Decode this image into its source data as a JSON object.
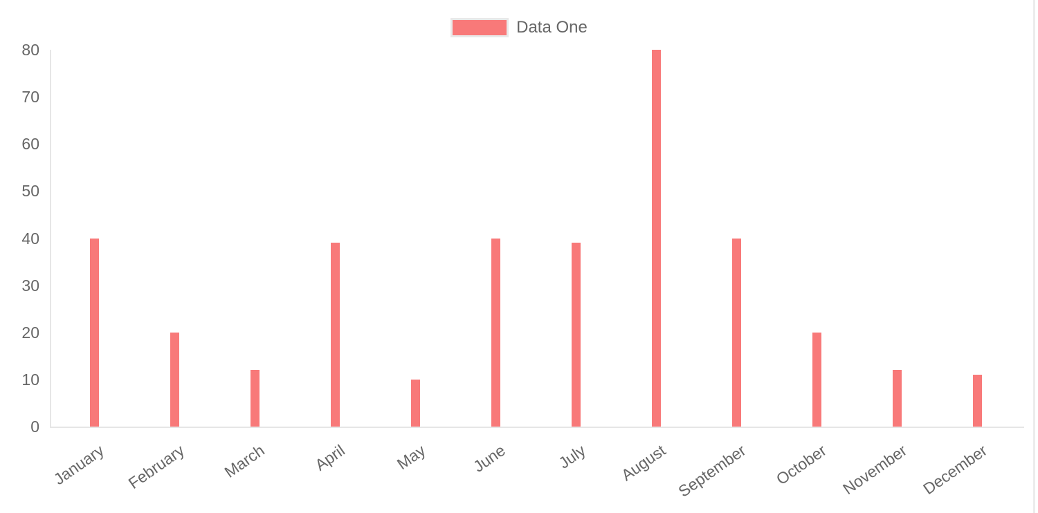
{
  "chart_data": {
    "type": "bar",
    "title": "",
    "xlabel": "",
    "ylabel": "",
    "categories": [
      "January",
      "February",
      "March",
      "April",
      "May",
      "June",
      "July",
      "August",
      "September",
      "October",
      "November",
      "December"
    ],
    "series": [
      {
        "name": "Data One",
        "color": "#f87979",
        "values": [
          40,
          20,
          12,
          39,
          10,
          40,
          39,
          80,
          40,
          20,
          12,
          11
        ]
      }
    ],
    "ylim": [
      0,
      80
    ],
    "yticks": [
      0,
      10,
      20,
      30,
      40,
      50,
      60,
      70,
      80
    ],
    "grid": false,
    "legend_position": "top",
    "x_label_rotation_deg": -35,
    "colors": {
      "bar": "#f87979",
      "axis_line": "#e6e6e6",
      "tick_label": "#666666",
      "legend_text": "#666666",
      "legend_swatch_border": "#e9e9e9",
      "background": "#ffffff",
      "right_edge_line": "#ececec"
    }
  }
}
